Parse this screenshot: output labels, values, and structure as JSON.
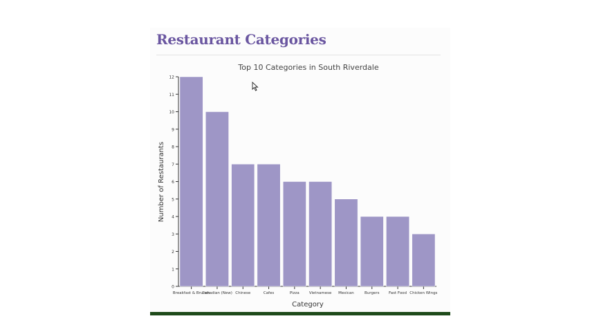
{
  "section": {
    "title": "Restaurant Categories"
  },
  "colors": {
    "heading": "#6a56a0",
    "bar": "#9e96c6",
    "bar_stroke": "#ffffff",
    "footer": "#1e4a1a"
  },
  "chart_data": {
    "type": "bar",
    "title": "Top 10 Categories in South Riverdale",
    "xlabel": "Category",
    "ylabel": "Number of Restaurants",
    "categories": [
      "Breakfast & Brunch",
      "Canadian (New)",
      "Chinese",
      "Cafes",
      "Pizza",
      "Vietnamese",
      "Mexican",
      "Burgers",
      "Fast Food",
      "Chicken Wings"
    ],
    "values": [
      12,
      10,
      7,
      7,
      6,
      6,
      5,
      4,
      4,
      3
    ],
    "ylim": [
      0,
      12
    ],
    "yticks": [
      0,
      1,
      2,
      3,
      4,
      5,
      6,
      7,
      8,
      9,
      10,
      11,
      12
    ],
    "grid": false,
    "legend": "none"
  }
}
